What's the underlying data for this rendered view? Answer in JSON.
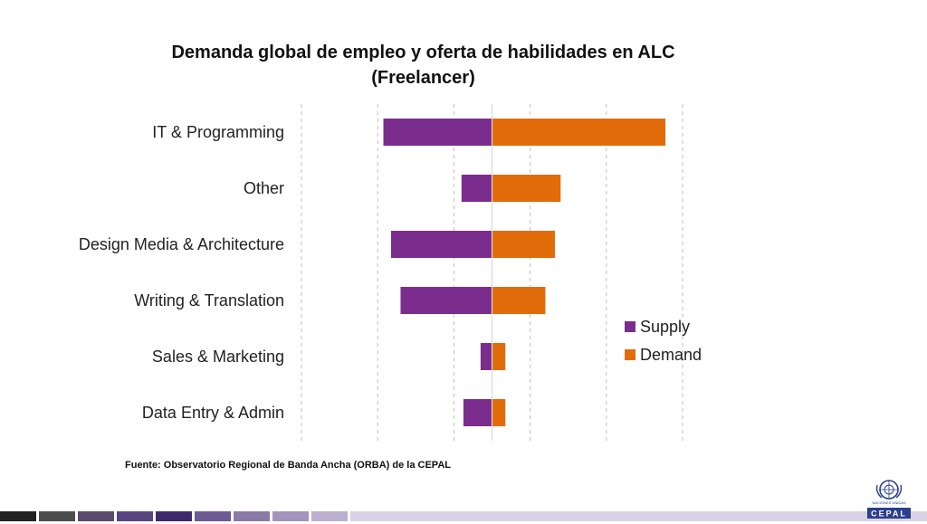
{
  "chart_data": {
    "type": "bar",
    "orientation": "horizontal-diverging",
    "title_lines": [
      "Demanda global de empleo y oferta de habilidades en ALC",
      "(Freelancer)"
    ],
    "categories": [
      "IT & Programming",
      "Other",
      "Design Media & Architecture",
      "Writing & Translation",
      "Sales & Marketing",
      "Data Entry & Admin"
    ],
    "series": [
      {
        "name": "Supply",
        "color": "#7B2D8E",
        "values": [
          -0.57,
          -0.16,
          -0.53,
          -0.48,
          -0.06,
          -0.15
        ]
      },
      {
        "name": "Demand",
        "color": "#E36C0A",
        "values": [
          0.91,
          0.36,
          0.33,
          0.28,
          0.07,
          0.07
        ]
      }
    ],
    "xlim": [
      -1.0,
      1.0
    ],
    "grid": true,
    "legend_position": "right"
  },
  "source_text": "Fuente: Observatorio Regional de Banda Ancha (ORBA) de la CEPAL",
  "footer_colors": [
    "#222222",
    "#4d4d4d",
    "#5a4b6e",
    "#574480",
    "#3e2a6a",
    "#6d5a95",
    "#8b7aa8",
    "#a394bd",
    "#bcb0cf",
    "#d9d1e5"
  ],
  "logo": {
    "text": "CEPAL",
    "caption": "NACIONES UNIDAS",
    "icon": "un-emblem-icon"
  }
}
